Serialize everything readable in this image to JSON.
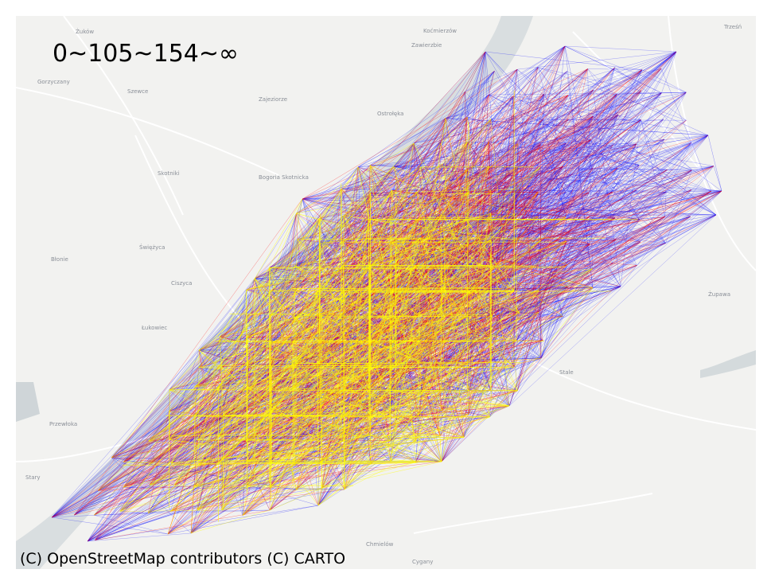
{
  "legend": {
    "title": "0~105~154~∞"
  },
  "attribution": "(C) OpenStreetMap contributors (C) CARTO",
  "colors": {
    "background": "#f2f2f0",
    "water": "#d4dadc",
    "road": "#ffffff",
    "low": "#0000ff",
    "mid": "#ff0000",
    "high": "#ffff00"
  },
  "places": [
    "Żuków",
    "Koćmierzów",
    "Trześń",
    "Zawierzbie",
    "Gorzyczany",
    "Szewce",
    "Zajeziorze",
    "Ostrołęka",
    "Skotniki",
    "Bogoria Skotnicka",
    "Błonie",
    "Świężyca",
    "Ciszyca",
    "Łukowiec",
    "Żupawa",
    "Przewłoka",
    "Stale",
    "Chmielów",
    "Cygany",
    "Stary"
  ]
}
